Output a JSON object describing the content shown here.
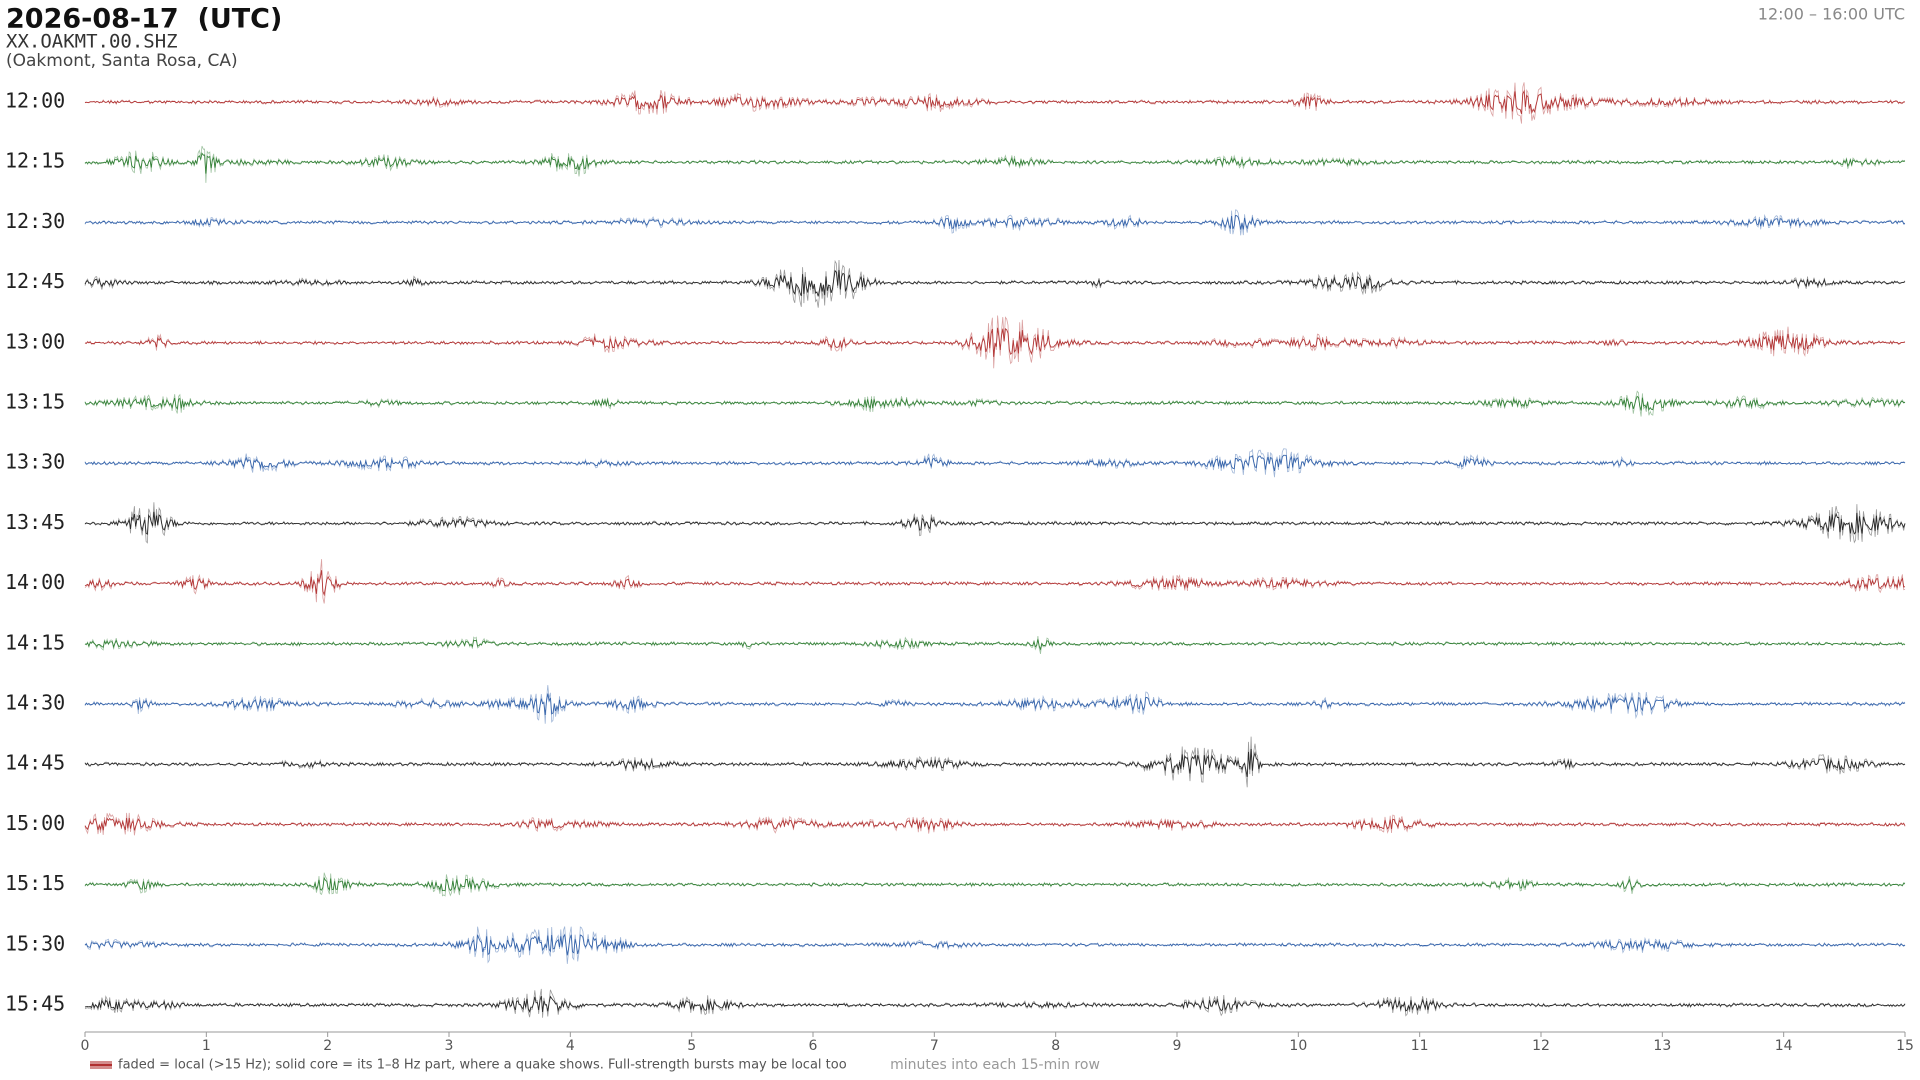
{
  "chart_data": {
    "type": "helicorder",
    "title": "2026-08-17  (UTC)",
    "subtitle": "XX.OAKMT.00.SHZ",
    "location": "(Oakmont, Santa Rosa, CA)",
    "time_range": "12:00 – 16:00 UTC",
    "categories": [
      "12:00",
      "12:15",
      "12:30",
      "12:45",
      "13:00",
      "13:15",
      "13:30",
      "13:45",
      "14:00",
      "14:15",
      "14:30",
      "14:45",
      "15:00",
      "15:15",
      "15:30",
      "15:45"
    ],
    "colors": [
      "#b03030",
      "#2e7d32",
      "#2f5fa8",
      "#222222"
    ],
    "xlim": [
      0,
      15
    ],
    "xticks": [
      0,
      1,
      2,
      3,
      4,
      5,
      6,
      7,
      8,
      9,
      10,
      11,
      12,
      13,
      14,
      15
    ],
    "xlabel": "minutes into each 15-min row",
    "legend": "faded = local (>15 Hz); solid core = its 1–8 Hz part, where a quake shows. Full-strength bursts may be local too"
  }
}
